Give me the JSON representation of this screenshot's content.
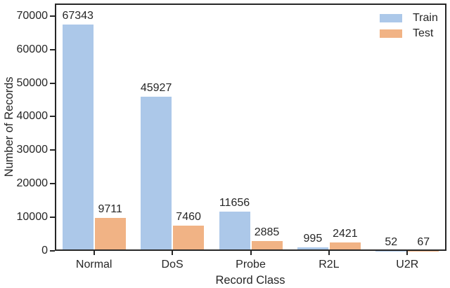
{
  "figure": {
    "background": "#ffffff",
    "spine_color": "#262626",
    "text_color": "#262626"
  },
  "chart_data": {
    "type": "bar",
    "title": "",
    "xlabel": "Record Class",
    "ylabel": "Number of Records",
    "categories": [
      "Normal",
      "DoS",
      "Probe",
      "R2L",
      "U2R"
    ],
    "series": [
      {
        "name": "Train",
        "color": "#acc8e9",
        "values": [
          67343,
          45927,
          11656,
          995,
          52
        ]
      },
      {
        "name": "Test",
        "color": "#f1b385",
        "values": [
          9711,
          7460,
          2885,
          2421,
          67
        ]
      }
    ],
    "bar_value_labels": [
      [
        "67343",
        "45927",
        "11656",
        "995",
        "52"
      ],
      [
        "9711",
        "7460",
        "2885",
        "2421",
        "67"
      ]
    ],
    "yticks": [
      0,
      10000,
      20000,
      30000,
      40000,
      50000,
      60000,
      70000
    ],
    "ytick_labels": [
      "0",
      "10000",
      "20000",
      "30000",
      "40000",
      "50000",
      "60000",
      "70000"
    ],
    "ylim": [
      0,
      73700
    ],
    "grid": false,
    "legend_position": "upper right",
    "legend_frame": false
  }
}
